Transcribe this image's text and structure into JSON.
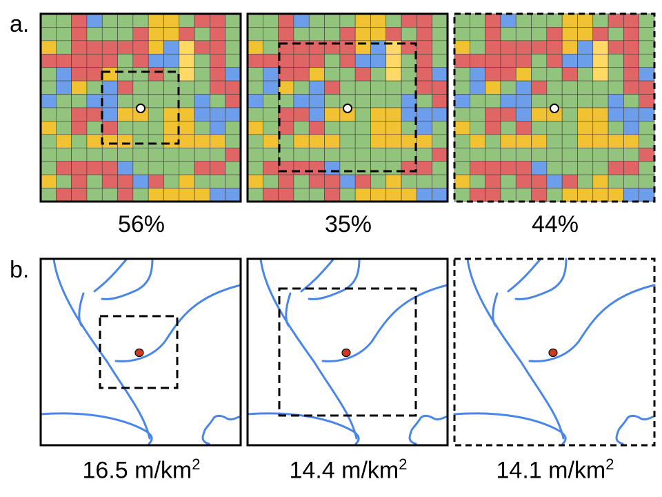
{
  "panel_a": {
    "letter": "a.",
    "captions": [
      "56%",
      "35%",
      "44%"
    ],
    "palette": {
      "G": "#93c47d",
      "R": "#e06666",
      "Y": "#f1c232",
      "B": "#6d9eeb",
      "L": "#ffd966"
    },
    "grid": [
      "GGRBGGGYYGRRG",
      "GGRGGGRYYRGRG",
      "YGRRRRRYBLRRG",
      "RRRRRGRBBLGRG",
      "GBRRYGGRGLGRB",
      "GBYGBRGGGGGRR",
      "BGGBBGGGGGBGR",
      "GGRRBYYGYYBBB",
      "YGRGRGGGYYGBG",
      "GYGYYYGGYYYYG",
      "GGGGGGGGGGGGR",
      "GRRRRBGGGGRRG",
      "YGRGRRBRGYGGG",
      "GRRGGRGYYYYBB"
    ]
  },
  "panel_b": {
    "letter": "b.",
    "captions": [
      "16.5 m/km",
      "14.4 m/km",
      "14.1 m/km"
    ],
    "unit_superscript": "2",
    "river_color": "#4a86e8",
    "point_color": "#cc3b20"
  }
}
